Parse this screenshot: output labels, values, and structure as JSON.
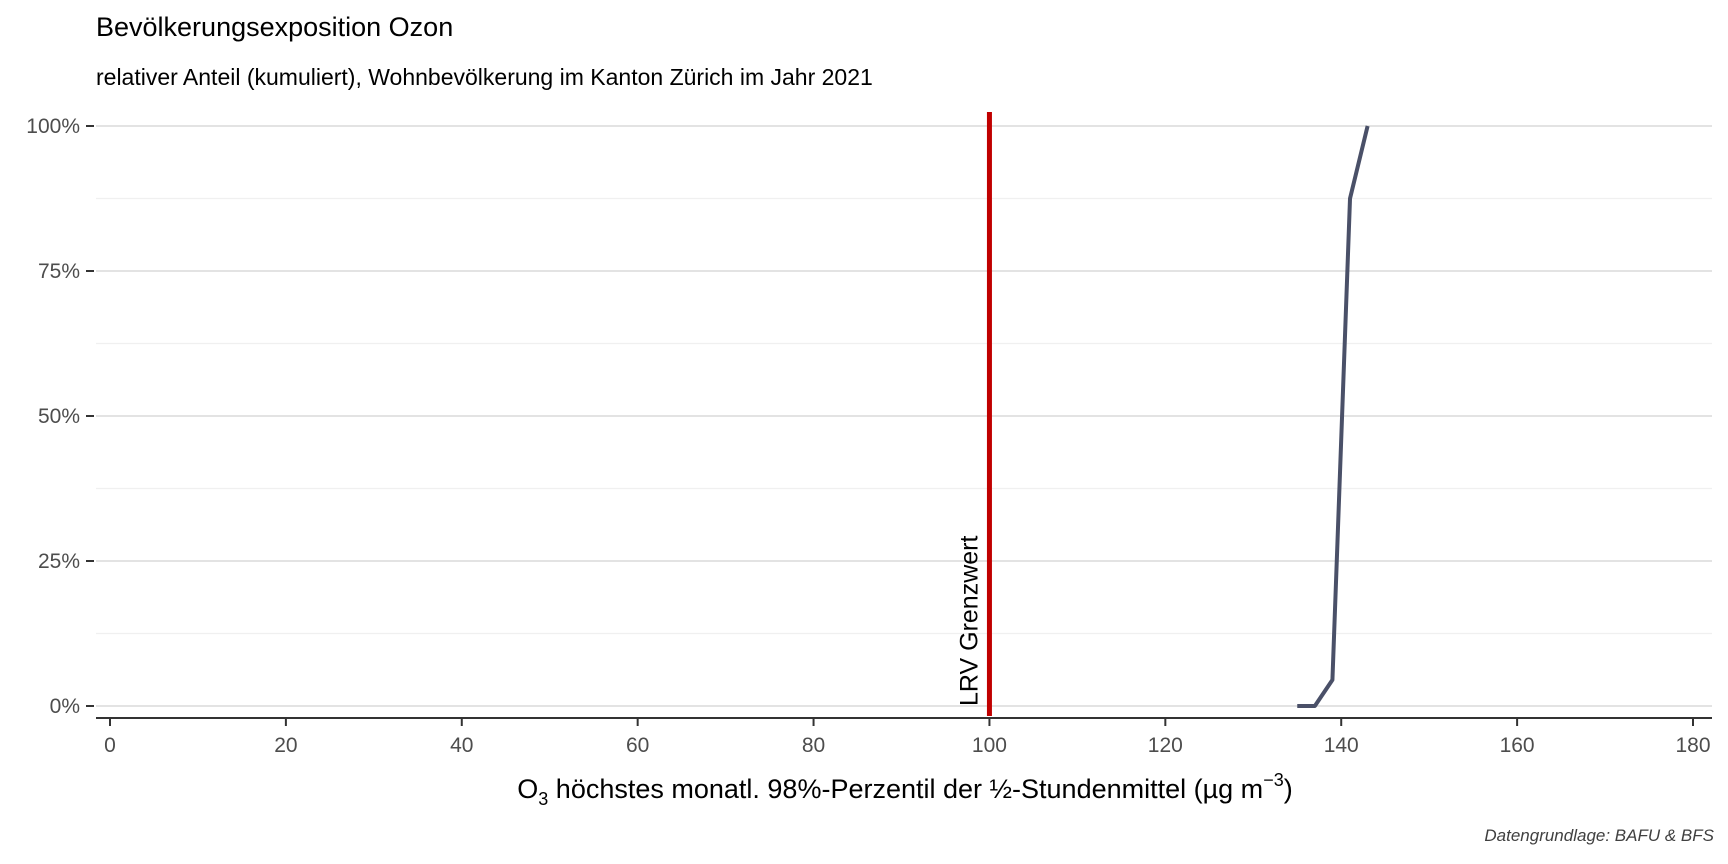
{
  "chart_data": {
    "type": "line",
    "title": "Bevölkerungsexposition Ozon",
    "subtitle": "relativer Anteil (kumuliert), Wohnbevölkerung im Kanton Zürich im Jahr 2021",
    "xlabel_main": "O",
    "xlabel_sub": "3",
    "xlabel_rest": " höchstes monatl. 98%-Perzentil der ½-Stundenmittel (µg m",
    "xlabel_sup": "−3",
    "xlabel_close": ")",
    "ylabel": "",
    "caption": "Datengrundlage: BAFU & BFS",
    "xlim": [
      0,
      180
    ],
    "ylim": [
      0,
      1
    ],
    "x_ticks": [
      0,
      20,
      40,
      60,
      80,
      100,
      120,
      140,
      160,
      180
    ],
    "x_tick_labels": [
      "0",
      "20",
      "40",
      "60",
      "80",
      "100",
      "120",
      "140",
      "160",
      "180"
    ],
    "y_ticks": [
      0,
      0.25,
      0.5,
      0.75,
      1
    ],
    "y_tick_labels": [
      "0%",
      "25%",
      "50%",
      "75%",
      "100%"
    ],
    "grid": true,
    "legend": "none",
    "series": [
      {
        "color": "#4a5068",
        "x": [
          135,
          137,
          139,
          141,
          143
        ],
        "y": [
          0,
          0,
          0.045,
          0.875,
          1.0
        ]
      }
    ],
    "reference_line": {
      "x": 100,
      "label": "LRV Grenzwert",
      "color": "#c00000"
    }
  }
}
